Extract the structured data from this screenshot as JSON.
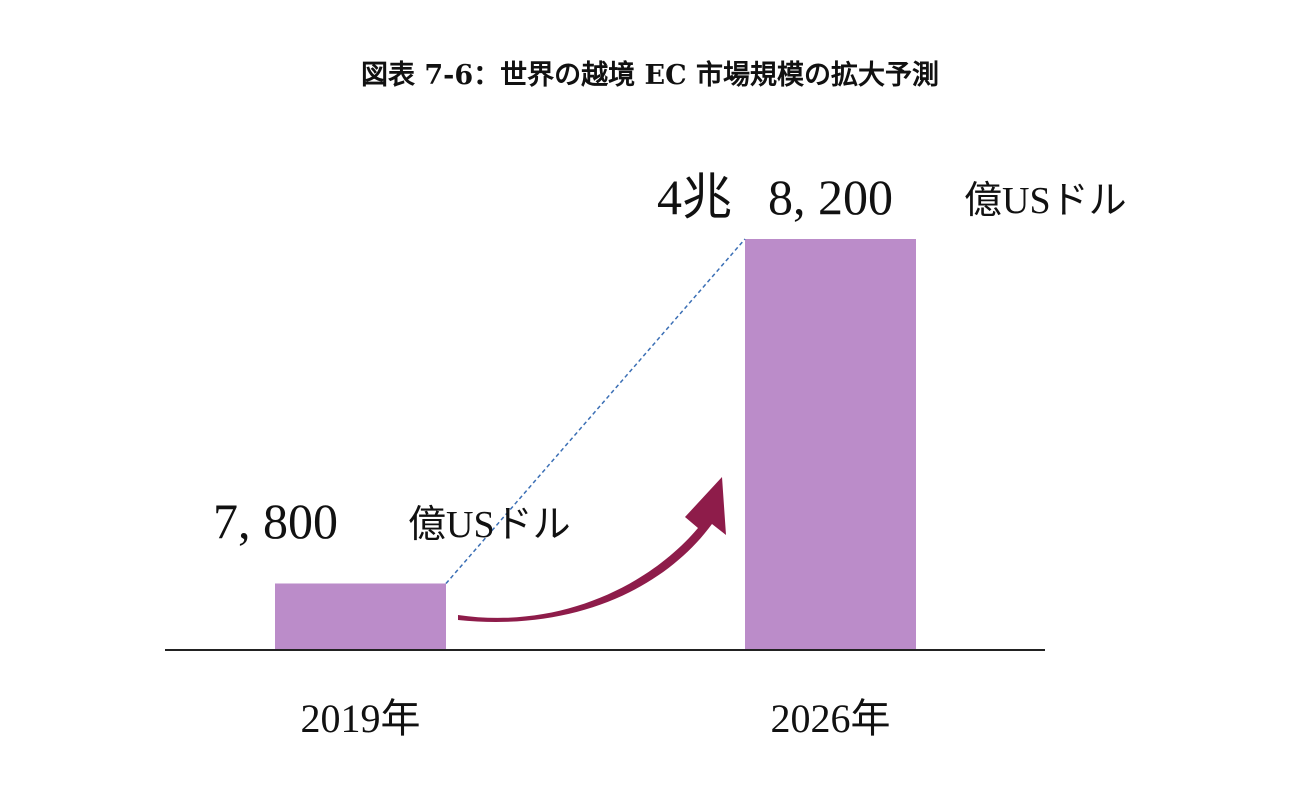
{
  "chart_data": {
    "type": "bar",
    "title": "図表 7-6：世界の越境 EC 市場規模の拡大予測",
    "categories": [
      "2019年",
      "2026年"
    ],
    "values": [
      7800,
      48200
    ],
    "unit": "億USドル",
    "value_labels": [
      {
        "parts": [
          "7, 800"
        ],
        "unit": "億USドル"
      },
      {
        "parts": [
          "4兆",
          "8, 200"
        ],
        "unit": "億USドル"
      }
    ],
    "xlabel": "",
    "ylabel": "",
    "ylim": [
      0,
      48200
    ],
    "grid": false,
    "legend": "none",
    "colors": {
      "bar": "#bb8cc9",
      "arrow": "#8e1c4a",
      "connector": "#3b6fb5",
      "axis": "#222222"
    }
  }
}
